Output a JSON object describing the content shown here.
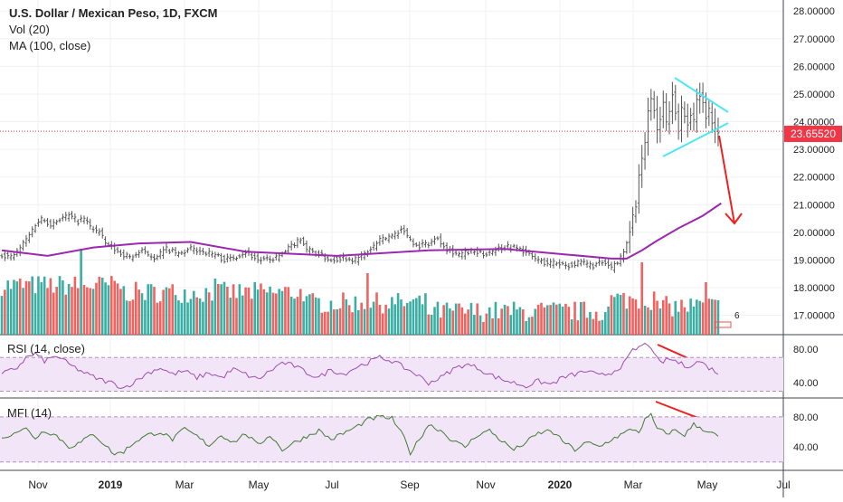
{
  "header": {
    "title": "U.S. Dollar / Mexican Peso, 1D, FXCM",
    "volume_label": "Vol (20)",
    "ma_label": "MA (100, close)"
  },
  "rsi_pane": {
    "label": "RSI (14, close)"
  },
  "mfi_pane": {
    "label": "MFI (14)"
  },
  "colors": {
    "up": "#26a69a",
    "down": "#ef5350",
    "ohlc": "#555555",
    "ma": "#9c27b0",
    "triangle": "#4de6f5",
    "arrow": "#ef2020",
    "price_line": "#f23645",
    "rsi_line": "#9c4fb0",
    "mfi_line": "#3f7d32",
    "band": "#f3e5f8"
  },
  "last_price": "23.65520",
  "volume_badge": "6",
  "chart_data": [
    {
      "type": "ohlc",
      "title": "U.S. Dollar / Mexican Peso, 1D, FXCM",
      "x_ticks": [
        "Nov",
        "2019",
        "Mar",
        "May",
        "Jul",
        "Sep",
        "Nov",
        "2020",
        "Mar",
        "May",
        "Jul"
      ],
      "y_ticks": [
        "17.00000",
        "18.00000",
        "19.00000",
        "20.00000",
        "21.00000",
        "22.00000",
        "23.00000",
        "24.00000",
        "25.00000",
        "26.00000",
        "27.00000",
        "28.00000"
      ],
      "ylim": [
        16.3,
        28.4
      ],
      "close_path": [
        [
          0,
          19.2
        ],
        [
          3,
          19.1
        ],
        [
          5,
          19.3
        ],
        [
          7,
          19.6
        ],
        [
          9,
          19.9
        ],
        [
          11,
          20.3
        ],
        [
          13,
          20.5
        ],
        [
          16,
          20.3
        ],
        [
          19,
          20.5
        ],
        [
          22,
          20.6
        ],
        [
          25,
          20.4
        ],
        [
          27,
          20.5
        ],
        [
          29,
          20.2
        ],
        [
          32,
          20.0
        ],
        [
          34,
          19.6
        ],
        [
          38,
          19.3
        ],
        [
          42,
          19.1
        ],
        [
          46,
          19.3
        ],
        [
          50,
          19.1
        ],
        [
          54,
          19.4
        ],
        [
          58,
          19.2
        ],
        [
          62,
          19.4
        ],
        [
          66,
          19.3
        ],
        [
          70,
          19.2
        ],
        [
          73,
          19.0
        ],
        [
          76,
          19.1
        ],
        [
          80,
          19.3
        ],
        [
          84,
          19.0
        ],
        [
          88,
          19.0
        ],
        [
          92,
          19.2
        ],
        [
          96,
          19.6
        ],
        [
          98,
          19.8
        ],
        [
          100,
          19.4
        ],
        [
          104,
          19.2
        ],
        [
          108,
          19.0
        ],
        [
          112,
          19.1
        ],
        [
          116,
          19.0
        ],
        [
          120,
          19.3
        ],
        [
          124,
          19.7
        ],
        [
          128,
          19.9
        ],
        [
          131,
          20.1
        ],
        [
          133,
          19.9
        ],
        [
          136,
          19.5
        ],
        [
          140,
          19.6
        ],
        [
          143,
          19.8
        ],
        [
          146,
          19.4
        ],
        [
          150,
          19.2
        ],
        [
          154,
          19.3
        ],
        [
          158,
          19.2
        ],
        [
          162,
          19.4
        ],
        [
          166,
          19.5
        ],
        [
          170,
          19.4
        ],
        [
          174,
          19.1
        ],
        [
          178,
          18.9
        ],
        [
          182,
          18.9
        ],
        [
          186,
          18.8
        ],
        [
          190,
          18.9
        ],
        [
          194,
          18.8
        ],
        [
          197,
          18.9
        ],
        [
          200,
          18.7
        ],
        [
          202,
          18.9
        ],
        [
          204,
          19.3
        ],
        [
          206,
          20.1
        ],
        [
          207,
          20.6
        ],
        [
          208,
          21.0
        ],
        [
          209,
          22.0
        ],
        [
          210,
          22.6
        ],
        [
          211,
          23.3
        ],
        [
          212,
          24.3
        ],
        [
          213,
          24.9
        ],
        [
          214,
          24.4
        ],
        [
          215,
          23.7
        ],
        [
          216,
          24.1
        ],
        [
          217,
          24.7
        ],
        [
          218,
          24.0
        ],
        [
          219,
          24.4
        ],
        [
          220,
          25.0
        ],
        [
          221,
          24.3
        ],
        [
          222,
          23.7
        ],
        [
          223,
          24.5
        ],
        [
          224,
          24.2
        ],
        [
          225,
          23.9
        ],
        [
          226,
          24.3
        ],
        [
          227,
          24.0
        ],
        [
          228,
          24.8
        ],
        [
          229,
          25.0
        ],
        [
          230,
          24.7
        ],
        [
          231,
          24.2
        ],
        [
          232,
          24.4
        ],
        [
          233,
          24.0
        ],
        [
          234,
          23.7
        ],
        [
          235,
          23.65
        ]
      ],
      "moving_average_path": [
        [
          0,
          19.35
        ],
        [
          15,
          19.15
        ],
        [
          30,
          19.45
        ],
        [
          45,
          19.6
        ],
        [
          62,
          19.65
        ],
        [
          80,
          19.3
        ],
        [
          110,
          19.15
        ],
        [
          140,
          19.35
        ],
        [
          165,
          19.4
        ],
        [
          185,
          19.2
        ],
        [
          200,
          19.05
        ],
        [
          205,
          19.05
        ],
        [
          210,
          19.35
        ],
        [
          215,
          19.7
        ],
        [
          222,
          20.15
        ],
        [
          230,
          20.6
        ],
        [
          236,
          21.05
        ]
      ],
      "volume_panel_range": [
        0,
        100
      ],
      "last_value": 23.6552
    },
    {
      "type": "line",
      "title": "RSI (14, close)",
      "y_ticks": [
        "40.00",
        "80.00"
      ],
      "ylim": [
        22,
        96
      ],
      "band": [
        30,
        70
      ],
      "path": [
        [
          0,
          50
        ],
        [
          5,
          58
        ],
        [
          8,
          70
        ],
        [
          11,
          74
        ],
        [
          14,
          66
        ],
        [
          18,
          72
        ],
        [
          22,
          62
        ],
        [
          28,
          50
        ],
        [
          32,
          44
        ],
        [
          36,
          40
        ],
        [
          40,
          34
        ],
        [
          44,
          42
        ],
        [
          48,
          52
        ],
        [
          52,
          58
        ],
        [
          56,
          50
        ],
        [
          60,
          54
        ],
        [
          64,
          46
        ],
        [
          68,
          52
        ],
        [
          72,
          46
        ],
        [
          76,
          56
        ],
        [
          80,
          50
        ],
        [
          84,
          44
        ],
        [
          88,
          54
        ],
        [
          92,
          64
        ],
        [
          96,
          60
        ],
        [
          100,
          52
        ],
        [
          104,
          46
        ],
        [
          108,
          56
        ],
        [
          112,
          50
        ],
        [
          116,
          58
        ],
        [
          120,
          64
        ],
        [
          124,
          70
        ],
        [
          128,
          66
        ],
        [
          132,
          58
        ],
        [
          136,
          50
        ],
        [
          140,
          40
        ],
        [
          144,
          46
        ],
        [
          148,
          56
        ],
        [
          152,
          62
        ],
        [
          156,
          58
        ],
        [
          160,
          50
        ],
        [
          164,
          44
        ],
        [
          168,
          40
        ],
        [
          172,
          36
        ],
        [
          176,
          42
        ],
        [
          180,
          38
        ],
        [
          184,
          46
        ],
        [
          188,
          50
        ],
        [
          192,
          54
        ],
        [
          196,
          48
        ],
        [
          200,
          52
        ],
        [
          204,
          62
        ],
        [
          207,
          78
        ],
        [
          210,
          84
        ],
        [
          212,
          86
        ],
        [
          213,
          83
        ],
        [
          214,
          72
        ],
        [
          216,
          64
        ],
        [
          219,
          68
        ],
        [
          221,
          66
        ],
        [
          224,
          60
        ],
        [
          227,
          62
        ],
        [
          229,
          66
        ],
        [
          231,
          60
        ],
        [
          233,
          56
        ],
        [
          235,
          52
        ]
      ]
    },
    {
      "type": "line",
      "title": "MFI (14)",
      "y_ticks": [
        "40.00",
        "80.00"
      ],
      "ylim": [
        10,
        104
      ],
      "band": [
        20,
        80
      ],
      "path": [
        [
          0,
          50
        ],
        [
          4,
          60
        ],
        [
          8,
          64
        ],
        [
          11,
          52
        ],
        [
          14,
          62
        ],
        [
          18,
          55
        ],
        [
          22,
          40
        ],
        [
          26,
          46
        ],
        [
          30,
          58
        ],
        [
          34,
          42
        ],
        [
          37,
          30
        ],
        [
          40,
          34
        ],
        [
          44,
          48
        ],
        [
          48,
          56
        ],
        [
          52,
          60
        ],
        [
          56,
          50
        ],
        [
          60,
          64
        ],
        [
          64,
          54
        ],
        [
          68,
          42
        ],
        [
          72,
          56
        ],
        [
          76,
          46
        ],
        [
          80,
          58
        ],
        [
          84,
          42
        ],
        [
          88,
          56
        ],
        [
          92,
          36
        ],
        [
          96,
          46
        ],
        [
          100,
          54
        ],
        [
          104,
          62
        ],
        [
          108,
          50
        ],
        [
          112,
          58
        ],
        [
          116,
          66
        ],
        [
          120,
          76
        ],
        [
          124,
          80
        ],
        [
          128,
          78
        ],
        [
          132,
          52
        ],
        [
          134,
          32
        ],
        [
          136,
          44
        ],
        [
          140,
          70
        ],
        [
          144,
          62
        ],
        [
          148,
          48
        ],
        [
          152,
          40
        ],
        [
          156,
          56
        ],
        [
          160,
          62
        ],
        [
          164,
          48
        ],
        [
          168,
          36
        ],
        [
          172,
          46
        ],
        [
          176,
          58
        ],
        [
          180,
          62
        ],
        [
          184,
          48
        ],
        [
          188,
          36
        ],
        [
          192,
          46
        ],
        [
          196,
          40
        ],
        [
          200,
          50
        ],
        [
          204,
          58
        ],
        [
          207,
          64
        ],
        [
          209,
          60
        ],
        [
          211,
          76
        ],
        [
          213,
          82
        ],
        [
          215,
          64
        ],
        [
          218,
          58
        ],
        [
          221,
          62
        ],
        [
          224,
          56
        ],
        [
          227,
          70
        ],
        [
          229,
          66
        ],
        [
          231,
          62
        ],
        [
          233,
          58
        ],
        [
          235,
          54
        ]
      ]
    }
  ]
}
